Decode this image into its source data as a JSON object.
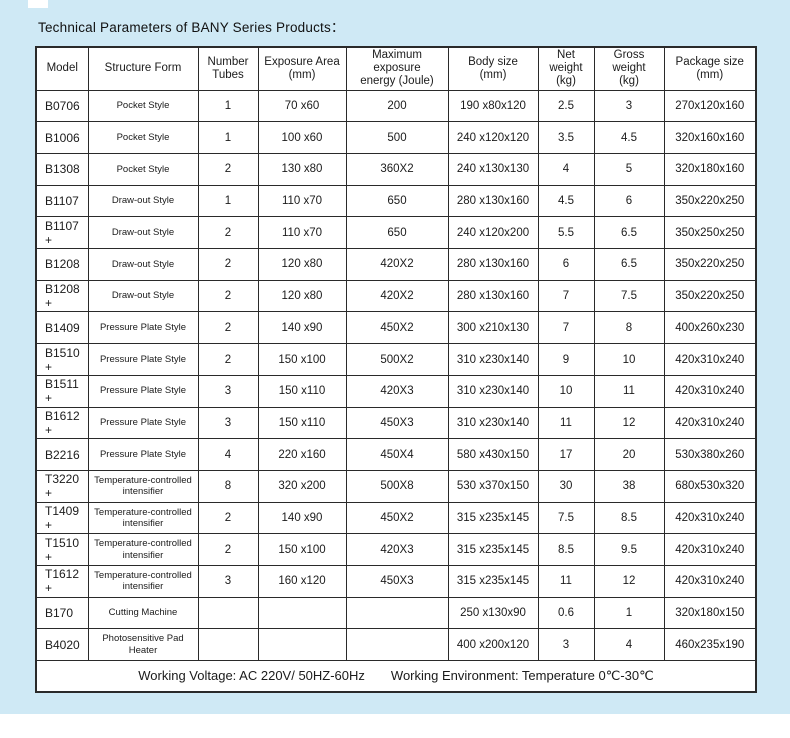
{
  "title": "Technical Parameters of BANY Series Products：",
  "table": {
    "headers": [
      "Model",
      "Structure Form",
      "Number Tubes",
      "Exposure Area\n(mm)",
      "Maximum exposure\nenergy (Joule)",
      "Body size\n(mm)",
      "Net weight\n(kg)",
      "Gross weight\n(kg)",
      "Package size\n(mm)"
    ],
    "column_names": [
      "model-cell",
      "structure-form-cell",
      "number-tubes-cell",
      "exposure-area-cell",
      "exposure-energy-cell",
      "body-size-cell",
      "net-weight-cell",
      "gross-weight-cell",
      "package-size-cell"
    ],
    "rows": [
      [
        "B0706",
        "Pocket Style",
        "1",
        "70 x60",
        "200",
        "190 x80x120",
        "2.5",
        "3",
        "270x120x160"
      ],
      [
        "B1006",
        "Pocket Style",
        "1",
        "100 x60",
        "500",
        "240 x120x120",
        "3.5",
        "4.5",
        "320x160x160"
      ],
      [
        "B1308",
        "Pocket Style",
        "2",
        "130 x80",
        "360X2",
        "240 x130x130",
        "4",
        "5",
        "320x180x160"
      ],
      [
        "B1107",
        "Draw-out Style",
        "1",
        "110 x70",
        "650",
        "280 x130x160",
        "4.5",
        "6",
        "350x220x250"
      ],
      [
        "B1107 +",
        "Draw-out Style",
        "2",
        "110 x70",
        "650",
        "240 x120x200",
        "5.5",
        "6.5",
        "350x250x250"
      ],
      [
        "B1208",
        "Draw-out Style",
        "2",
        "120 x80",
        "420X2",
        "280 x130x160",
        "6",
        "6.5",
        "350x220x250"
      ],
      [
        "B1208 +",
        "Draw-out Style",
        "2",
        "120 x80",
        "420X2",
        "280 x130x160",
        "7",
        "7.5",
        "350x220x250"
      ],
      [
        "B1409",
        "Pressure Plate Style",
        "2",
        "140 x90",
        "450X2",
        "300 x210x130",
        "7",
        "8",
        "400x260x230"
      ],
      [
        "B1510 +",
        "Pressure Plate Style",
        "2",
        "150 x100",
        "500X2",
        "310 x230x140",
        "9",
        "10",
        "420x310x240"
      ],
      [
        "B1511 +",
        "Pressure Plate Style",
        "3",
        "150 x110",
        "420X3",
        "310 x230x140",
        "10",
        "11",
        "420x310x240"
      ],
      [
        "B1612 +",
        "Pressure Plate Style",
        "3",
        "150 x110",
        "450X3",
        "310 x230x140",
        "11",
        "12",
        "420x310x240"
      ],
      [
        "B2216",
        "Pressure Plate Style",
        "4",
        "220 x160",
        "450X4",
        "580 x430x150",
        "17",
        "20",
        "530x380x260"
      ],
      [
        "T3220 +",
        "Temperature-controlled\nintensifier",
        "8",
        "320 x200",
        "500X8",
        "530 x370x150",
        "30",
        "38",
        "680x530x320"
      ],
      [
        "T1409 +",
        "Temperature-controlled\nintensifier",
        "2",
        "140 x90",
        "450X2",
        "315 x235x145",
        "7.5",
        "8.5",
        "420x310x240"
      ],
      [
        "T1510 +",
        "Temperature-controlled\nintensifier",
        "2",
        "150 x100",
        "420X3",
        "315 x235x145",
        "8.5",
        "9.5",
        "420x310x240"
      ],
      [
        "T1612 +",
        "Temperature-controlled\nintensifier",
        "3",
        "160 x120",
        "450X3",
        "315 x235x145",
        "11",
        "12",
        "420x310x240"
      ],
      [
        "B170",
        "Cutting Machine",
        "",
        "",
        "",
        "250 x130x90",
        "0.6",
        "1",
        "320x180x150"
      ],
      [
        "B4020",
        "Photosensitive Pad Heater",
        "",
        "",
        "",
        "400 x200x120",
        "3",
        "4",
        "460x235x190"
      ]
    ]
  },
  "footer": {
    "working_voltage": "Working Voltage: AC 220V/ 50HZ-60Hz",
    "working_environment": "Working Environment: Temperature 0℃-30℃"
  }
}
